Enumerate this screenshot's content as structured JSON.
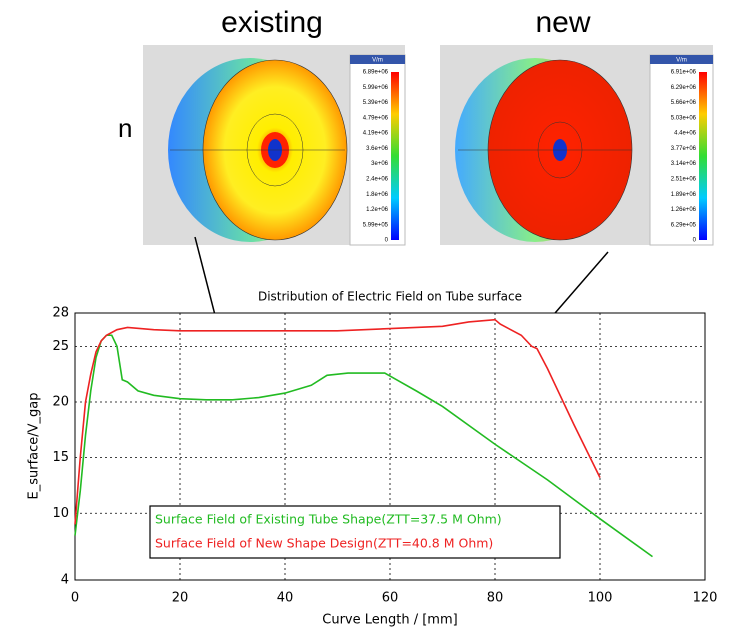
{
  "slide": {
    "side_fragment": "n"
  },
  "renders": [
    {
      "label": "existing",
      "unit": "V/m",
      "scale": [
        "6.89e+06",
        "5.99e+06",
        "5.39e+06",
        "4.79e+06",
        "4.19e+06",
        "3.6e+06",
        "3e+06",
        "2.4e+06",
        "1.8e+06",
        "1.2e+06",
        "5.99e+05",
        "0"
      ]
    },
    {
      "label": "new",
      "unit": "V/m",
      "scale": [
        "6.91e+06",
        "6.29e+06",
        "5.66e+06",
        "5.03e+06",
        "4.4e+06",
        "3.77e+06",
        "3.14e+06",
        "2.51e+06",
        "1.89e+06",
        "1.26e+06",
        "6.29e+05",
        "0"
      ]
    }
  ],
  "chart_data": {
    "type": "line",
    "title": "Distribution of Electric Field on Tube surface",
    "x_label": "Curve Length / [mm]",
    "y_label": "E_surface/V_gap",
    "xlim": [
      0,
      120
    ],
    "xticks": [
      0,
      20,
      40,
      60,
      80,
      100,
      120
    ],
    "ylim": [
      4,
      28
    ],
    "yticks": [
      4,
      10,
      15,
      20,
      25,
      28
    ],
    "grid": true,
    "series": [
      {
        "name": "Surface Field of Existing Tube Shape(ZTT=37.5 M Ohm)",
        "color": "#22bb22",
        "x": [
          0,
          1,
          2,
          3,
          4,
          5,
          6,
          7,
          8,
          9,
          10,
          12,
          15,
          20,
          25,
          30,
          35,
          40,
          45,
          48,
          52,
          56,
          59,
          65,
          70,
          80,
          90,
          100,
          110
        ],
        "values": [
          8,
          12,
          17,
          21,
          24,
          25.5,
          26,
          26,
          25,
          22,
          21.8,
          21,
          20.6,
          20.3,
          20.2,
          20.2,
          20.4,
          20.8,
          21.5,
          22.4,
          22.6,
          22.6,
          22.6,
          21,
          19.6,
          16.2,
          13,
          9.5,
          6.1
        ]
      },
      {
        "name": "Surface Field of New Shape Design(ZTT=40.8 M Ohm)",
        "color": "#ee2222",
        "x": [
          0,
          1,
          2,
          3,
          4,
          5,
          6,
          8,
          10,
          15,
          20,
          40,
          50,
          60,
          70,
          75,
          80,
          81,
          85,
          87,
          88,
          90,
          95,
          100
        ],
        "values": [
          9,
          15,
          20,
          22.5,
          24.5,
          25.5,
          26,
          26.5,
          26.7,
          26.5,
          26.4,
          26.4,
          26.4,
          26.6,
          26.8,
          27.2,
          27.4,
          27,
          26,
          25,
          24.8,
          23,
          18,
          13.2
        ]
      }
    ]
  }
}
